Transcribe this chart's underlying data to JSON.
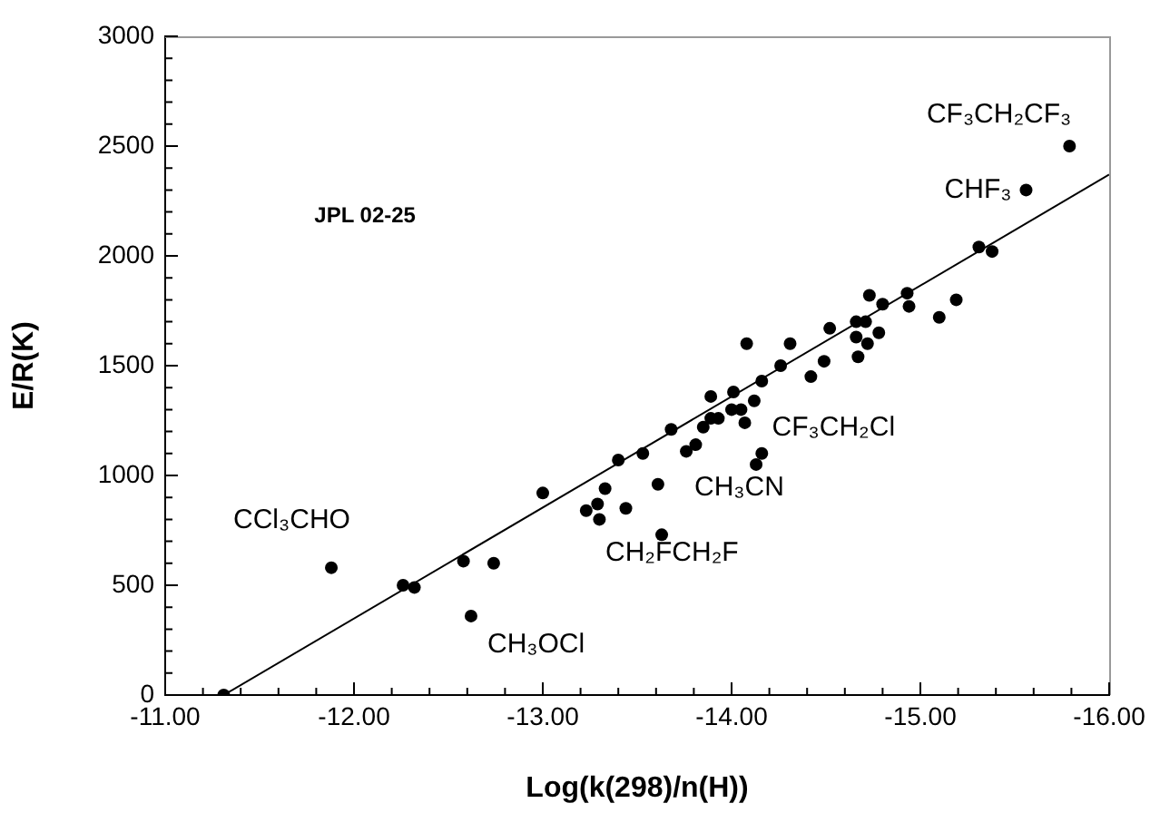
{
  "chart_data": {
    "type": "scatter",
    "xlabel": "Log(k(298)/n(H))",
    "ylabel": "E/R(K)",
    "xlim": [
      -11,
      -16
    ],
    "ylim": [
      0,
      3000
    ],
    "xticks": [
      {
        "value": -11,
        "label": "-11.00"
      },
      {
        "value": -11.2,
        "label": null
      },
      {
        "value": -11.4,
        "label": null
      },
      {
        "value": -11.6,
        "label": null
      },
      {
        "value": -11.8,
        "label": null
      },
      {
        "value": -12,
        "label": "-12.00"
      },
      {
        "value": -12.2,
        "label": null
      },
      {
        "value": -12.4,
        "label": null
      },
      {
        "value": -12.6,
        "label": null
      },
      {
        "value": -12.8,
        "label": null
      },
      {
        "value": -13,
        "label": "-13.00"
      },
      {
        "value": -13.2,
        "label": null
      },
      {
        "value": -13.4,
        "label": null
      },
      {
        "value": -13.6,
        "label": null
      },
      {
        "value": -13.8,
        "label": null
      },
      {
        "value": -14,
        "label": "-14.00"
      },
      {
        "value": -14.2,
        "label": null
      },
      {
        "value": -14.4,
        "label": null
      },
      {
        "value": -14.6,
        "label": null
      },
      {
        "value": -14.8,
        "label": null
      },
      {
        "value": -15,
        "label": "-15.00"
      },
      {
        "value": -15.2,
        "label": null
      },
      {
        "value": -15.4,
        "label": null
      },
      {
        "value": -15.6,
        "label": null
      },
      {
        "value": -15.8,
        "label": null
      },
      {
        "value": -16,
        "label": "-16.00"
      }
    ],
    "yticks": [
      0,
      {
        "value": 100,
        "label": null
      },
      {
        "value": 200,
        "label": null
      },
      {
        "value": 300,
        "label": null
      },
      {
        "value": 400,
        "label": null
      },
      500,
      {
        "value": 600,
        "label": null
      },
      {
        "value": 700,
        "label": null
      },
      {
        "value": 800,
        "label": null
      },
      {
        "value": 900,
        "label": null
      },
      1000,
      {
        "value": 1100,
        "label": null
      },
      {
        "value": 1200,
        "label": null
      },
      {
        "value": 1300,
        "label": null
      },
      {
        "value": 1400,
        "label": null
      },
      1500,
      {
        "value": 1600,
        "label": null
      },
      {
        "value": 1700,
        "label": null
      },
      {
        "value": 1800,
        "label": null
      },
      {
        "value": 1900,
        "label": null
      },
      2000,
      {
        "value": 2100,
        "label": null
      },
      {
        "value": 2200,
        "label": null
      },
      {
        "value": 2300,
        "label": null
      },
      {
        "value": 2400,
        "label": null
      },
      2500,
      {
        "value": 2600,
        "label": null
      },
      {
        "value": 2700,
        "label": null
      },
      {
        "value": 2800,
        "label": null
      },
      {
        "value": 2900,
        "label": null
      },
      3000
    ],
    "grid": false,
    "legend": false,
    "series": [
      {
        "color": "#000000",
        "marker": "circle",
        "x": [
          -11.31,
          -11.88,
          -12.26,
          -12.32,
          -12.58,
          -12.62,
          -12.74,
          -13.0,
          -13.23,
          -13.29,
          -13.3,
          -13.33,
          -13.4,
          -13.44,
          -13.53,
          -13.61,
          -13.63,
          -13.68,
          -13.76,
          -13.81,
          -13.85,
          -13.89,
          -13.89,
          -13.93,
          -14.01,
          -14.0,
          -14.05,
          -14.07,
          -14.08,
          -14.12,
          -14.13,
          -14.16,
          -14.16,
          -14.26,
          -14.31,
          -14.42,
          -14.49,
          -14.52,
          -14.66,
          -14.66,
          -14.67,
          -14.71,
          -14.72,
          -14.73,
          -14.78,
          -14.8,
          -14.93,
          -14.94,
          -15.1,
          -15.19,
          -15.31,
          -15.38,
          -15.56,
          -15.79
        ],
        "values": [
          0,
          580,
          500,
          490,
          610,
          360,
          600,
          920,
          840,
          870,
          800,
          940,
          1070,
          850,
          1100,
          960,
          730,
          1210,
          1110,
          1140,
          1220,
          1360,
          1260,
          1260,
          1380,
          1300,
          1300,
          1240,
          1600,
          1340,
          1050,
          1100,
          1430,
          1500,
          1600,
          1450,
          1520,
          1670,
          1700,
          1630,
          1540,
          1700,
          1600,
          1820,
          1650,
          1780,
          1830,
          1770,
          1720,
          1800,
          2040,
          2020,
          2300,
          2500
        ]
      },
      {
        "type": "line",
        "color": "#000000",
        "marker": "none",
        "line_style": "solid",
        "x": [
          -11.31,
          -16
        ],
        "values": [
          0,
          2370
        ]
      }
    ],
    "annotations": [
      "JPL 02-25",
      {
        "text": "CF₃CH₂CF₃",
        "x": -15.79,
        "y": 2500
      },
      {
        "text": "CHF₃",
        "x": -15.56,
        "y": 2300
      },
      {
        "text": "CCl₃CHO",
        "x": -11.88,
        "y": 580
      },
      {
        "text": "CF₃CH₂Cl",
        "x": -14.07,
        "y": 1240
      },
      {
        "text": "CH₃CN",
        "x": -14.13,
        "y": 1050
      },
      {
        "text": "CH₂FCH₂F",
        "x": -13.63,
        "y": 730
      },
      {
        "text": "CH₃OCl",
        "x": -12.62,
        "y": 360
      }
    ]
  }
}
